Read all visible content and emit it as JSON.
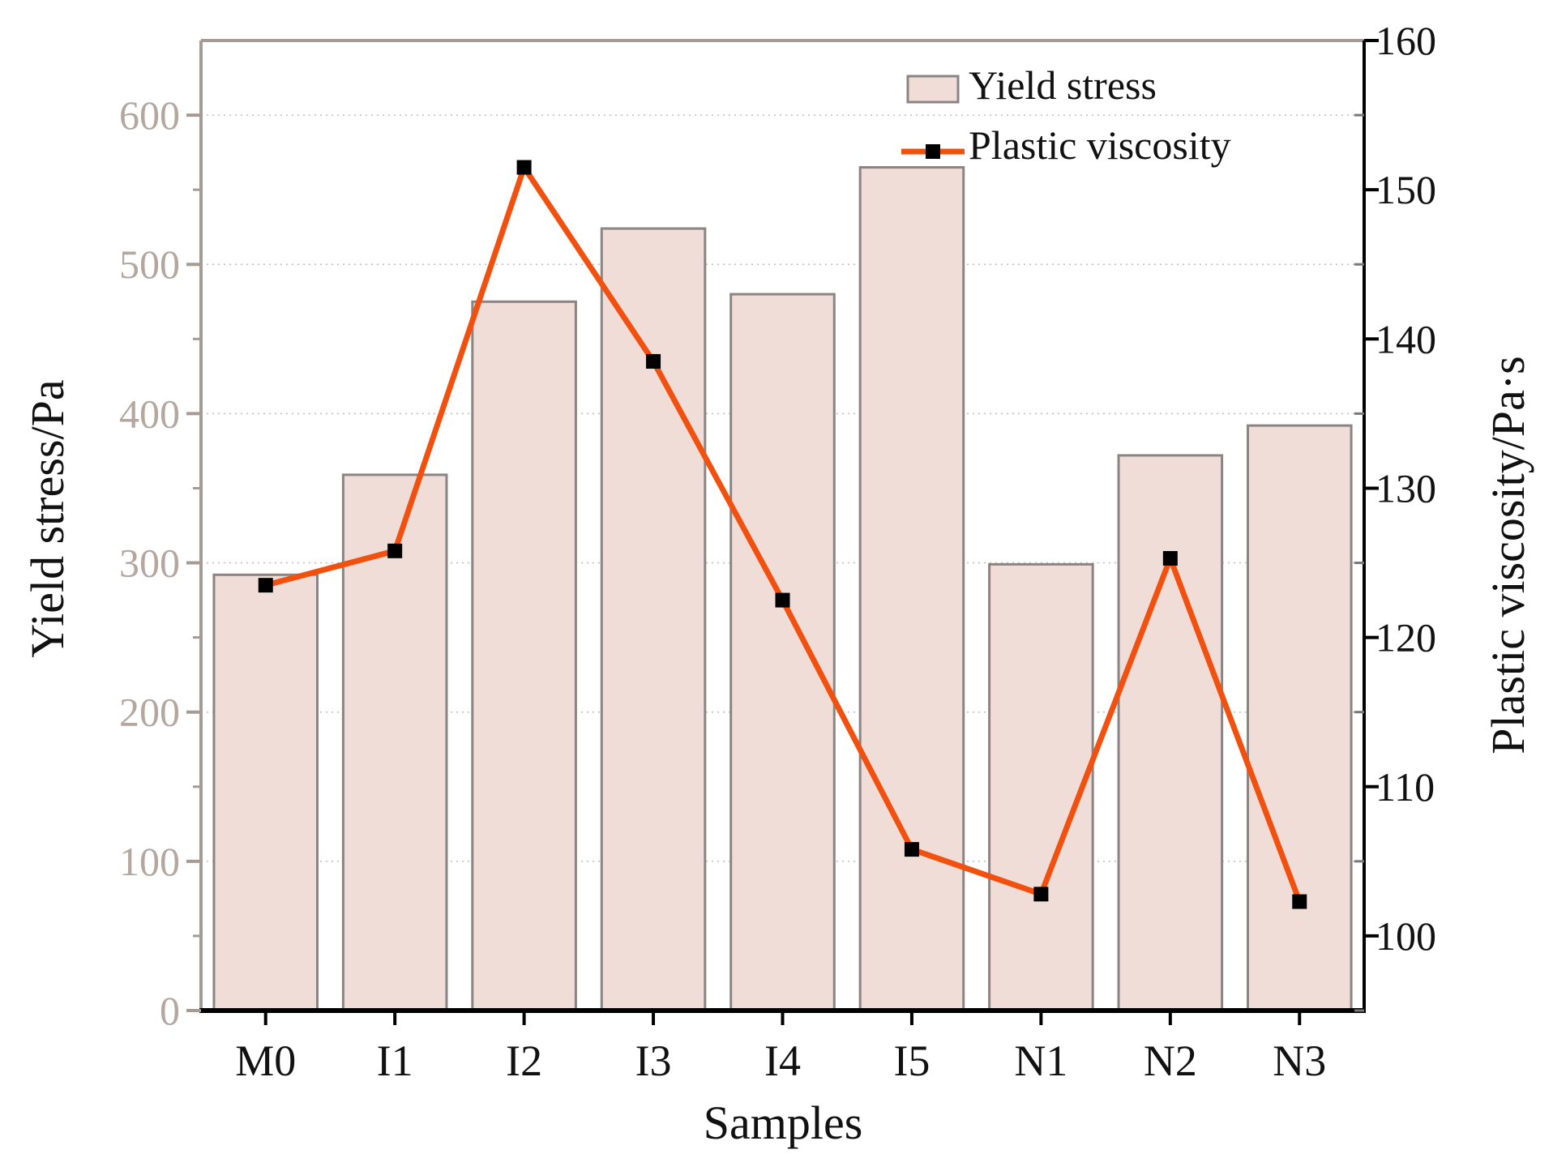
{
  "chart_data": {
    "type": "bar+line",
    "categories": [
      "M0",
      "I1",
      "I2",
      "I3",
      "I4",
      "I5",
      "N1",
      "N2",
      "N3"
    ],
    "series": [
      {
        "name": "Yield stress",
        "kind": "bar",
        "axis": "left",
        "values": [
          292,
          359,
          475,
          524,
          480,
          565,
          299,
          372,
          392
        ]
      },
      {
        "name": "Plastic viscosity",
        "kind": "line",
        "axis": "right",
        "values": [
          123.5,
          125.8,
          151.5,
          138.5,
          122.5,
          105.8,
          102.8,
          125.3,
          102.3
        ]
      }
    ],
    "xlabel": "Samples",
    "ylabel": "Yield stress/Pa",
    "y2label": "Plastic viscosity/Pa·s",
    "ylim": [
      0,
      650
    ],
    "y2lim": [
      95,
      160
    ],
    "yticks": [
      "0",
      "100",
      "200",
      "300",
      "400",
      "500",
      "600"
    ],
    "y2ticks": [
      "100",
      "110",
      "120",
      "130",
      "140",
      "150",
      "160"
    ],
    "legend_position": "top-right",
    "grid": true,
    "colors": {
      "bar_fill": "#f1ddd8",
      "bar_stroke": "#8a8583",
      "line": "#f2500f",
      "marker": "#000000",
      "left_axis": "#a69b94",
      "bottom_axis": "#000000",
      "right_axis": "#000000"
    }
  }
}
